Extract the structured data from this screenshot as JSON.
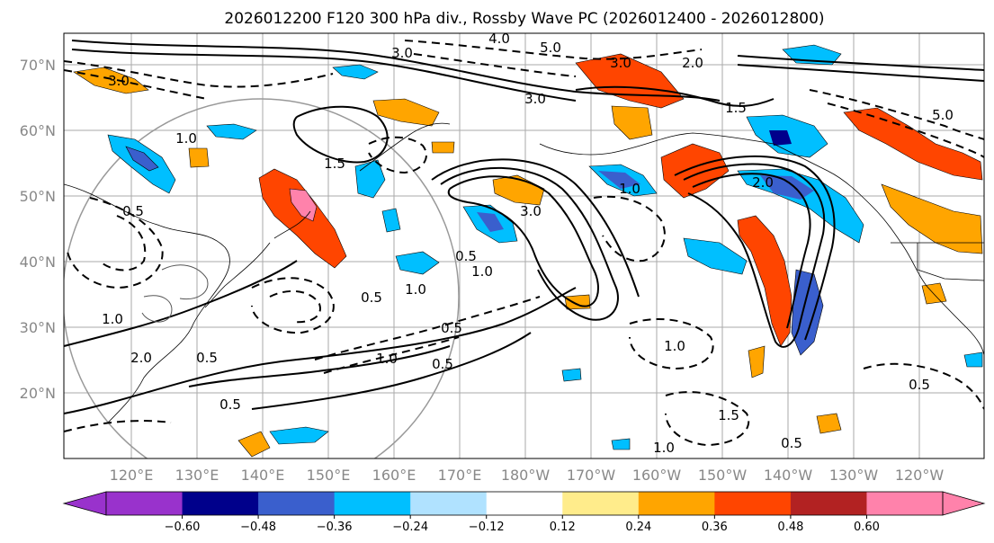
{
  "title": "2026012200 F120 300 hPa div., Rossby Wave PC (2026012400 - 2026012800)",
  "map": {
    "lat_labels": [
      "70°N",
      "60°N",
      "50°N",
      "40°N",
      "30°N",
      "20°N"
    ],
    "lon_labels": [
      "120°E",
      "130°E",
      "140°E",
      "150°E",
      "160°E",
      "170°E",
      "180°W",
      "170°W",
      "160°W",
      "150°W",
      "140°W",
      "130°W",
      "120°W"
    ],
    "contour_labels": [
      "3.0",
      "4.0",
      "5.0",
      "3.0",
      "2.0",
      "3.0",
      "1.5",
      "5.0",
      "3.0",
      "0.5",
      "1.0",
      "1.5",
      "2.0",
      "1.0",
      "3.0",
      "1.0",
      "0.5",
      "1.0",
      "0.5",
      "1.0",
      "2.0",
      "0.5",
      "0.5",
      "1.0",
      "0.5",
      "0.5",
      "1.0",
      "0.5",
      "1.5",
      "1.0",
      "0.5"
    ]
  },
  "colorbar": {
    "tick_labels": [
      "−0.60",
      "−0.48",
      "−0.36",
      "−0.24",
      "−0.12",
      "0.12",
      "0.24",
      "0.36",
      "0.48",
      "0.60"
    ],
    "colors": [
      "#9932cc",
      "#00008b",
      "#3a5fcd",
      "#00bfff",
      "#b0e2ff",
      "#ffffff",
      "#ffec8b",
      "#ffa500",
      "#ff4500",
      "#b22222",
      "#ff82ab"
    ]
  }
}
